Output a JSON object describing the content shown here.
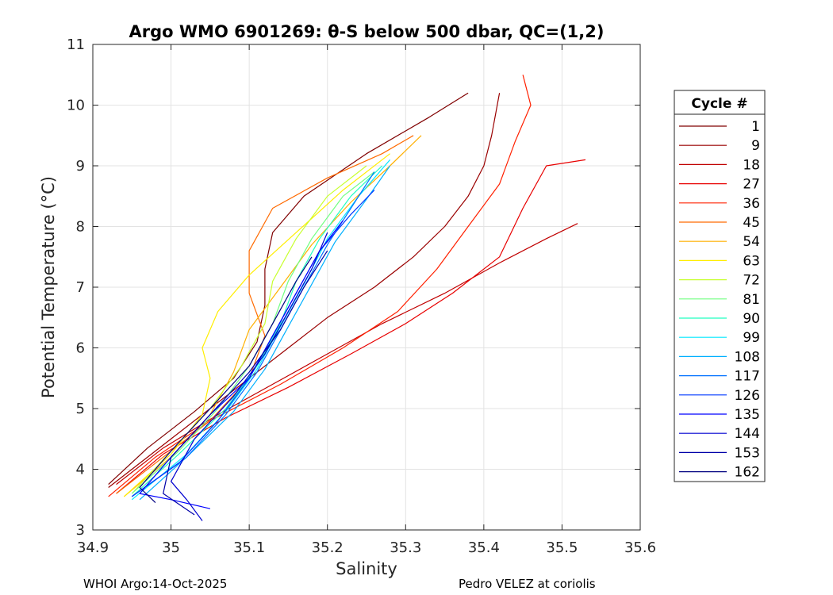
{
  "chart_data": {
    "type": "line",
    "title": "Argo WMO 6901269: θ-S below 500 dbar,  QC=(1,2)",
    "xlabel": "Salinity",
    "ylabel": "Potential Temperature (°C)",
    "xlim": [
      34.9,
      35.6
    ],
    "ylim": [
      3,
      11
    ],
    "xticks": [
      34.9,
      35,
      35.1,
      35.2,
      35.3,
      35.4,
      35.5,
      35.6
    ],
    "xtick_labels": [
      "34.9",
      "35",
      "35.1",
      "35.2",
      "35.3",
      "35.4",
      "35.5",
      "35.6"
    ],
    "yticks": [
      3,
      4,
      5,
      6,
      7,
      8,
      9,
      10,
      11
    ],
    "ytick_labels": [
      "3",
      "4",
      "5",
      "6",
      "7",
      "8",
      "9",
      "10",
      "11"
    ],
    "grid": true,
    "legend": {
      "title": "Cycle #",
      "placement": "outside-right",
      "entries": [
        {
          "label": "1",
          "color": "#800000"
        },
        {
          "label": "9",
          "color": "#9a0000"
        },
        {
          "label": "18",
          "color": "#c00000"
        },
        {
          "label": "27",
          "color": "#e80000"
        },
        {
          "label": "36",
          "color": "#ff2000"
        },
        {
          "label": "45",
          "color": "#ff6a00"
        },
        {
          "label": "54",
          "color": "#ffb000"
        },
        {
          "label": "63",
          "color": "#ffee00"
        },
        {
          "label": "72",
          "color": "#c8ff30"
        },
        {
          "label": "81",
          "color": "#70ff80"
        },
        {
          "label": "90",
          "color": "#20ffc0"
        },
        {
          "label": "99",
          "color": "#00e8ff"
        },
        {
          "label": "108",
          "color": "#00b0ff"
        },
        {
          "label": "117",
          "color": "#0070ff"
        },
        {
          "label": "126",
          "color": "#0038ff"
        },
        {
          "label": "135",
          "color": "#0000ff"
        },
        {
          "label": "144",
          "color": "#0000d0"
        },
        {
          "label": "153",
          "color": "#0000a8"
        },
        {
          "label": "162",
          "color": "#000080"
        }
      ]
    },
    "series": [
      {
        "name": "1",
        "color": "#800000",
        "points": [
          [
            34.92,
            3.75
          ],
          [
            34.97,
            4.35
          ],
          [
            35.03,
            4.95
          ],
          [
            35.08,
            5.5
          ],
          [
            35.11,
            6.1
          ],
          [
            35.12,
            6.7
          ],
          [
            35.12,
            7.3
          ],
          [
            35.13,
            7.9
          ],
          [
            35.17,
            8.5
          ],
          [
            35.25,
            9.2
          ],
          [
            35.33,
            9.8
          ],
          [
            35.38,
            10.2
          ]
        ]
      },
      {
        "name": "9",
        "color": "#9a0000",
        "points": [
          [
            34.92,
            3.7
          ],
          [
            34.98,
            4.3
          ],
          [
            35.04,
            4.9
          ],
          [
            35.1,
            5.5
          ],
          [
            35.15,
            6.0
          ],
          [
            35.2,
            6.5
          ],
          [
            35.26,
            7.0
          ],
          [
            35.31,
            7.5
          ],
          [
            35.35,
            8.0
          ],
          [
            35.38,
            8.5
          ],
          [
            35.4,
            9.0
          ],
          [
            35.41,
            9.5
          ],
          [
            35.42,
            10.2
          ]
        ]
      },
      {
        "name": "18",
        "color": "#c00000",
        "points": [
          [
            34.93,
            3.75
          ],
          [
            34.99,
            4.35
          ],
          [
            35.06,
            4.9
          ],
          [
            35.13,
            5.4
          ],
          [
            35.2,
            5.9
          ],
          [
            35.27,
            6.4
          ],
          [
            35.35,
            6.9
          ],
          [
            35.42,
            7.4
          ],
          [
            35.48,
            7.8
          ],
          [
            35.52,
            8.05
          ]
        ]
      },
      {
        "name": "27",
        "color": "#e80000",
        "points": [
          [
            34.93,
            3.6
          ],
          [
            34.99,
            4.25
          ],
          [
            35.07,
            4.85
          ],
          [
            35.15,
            5.35
          ],
          [
            35.23,
            5.9
          ],
          [
            35.3,
            6.4
          ],
          [
            35.36,
            6.9
          ],
          [
            35.42,
            7.5
          ],
          [
            35.45,
            8.3
          ],
          [
            35.48,
            9.0
          ],
          [
            35.53,
            9.1
          ]
        ]
      },
      {
        "name": "36",
        "color": "#ff2000",
        "points": [
          [
            34.92,
            3.55
          ],
          [
            34.98,
            4.2
          ],
          [
            35.05,
            4.8
          ],
          [
            35.14,
            5.4
          ],
          [
            35.22,
            6.0
          ],
          [
            35.29,
            6.6
          ],
          [
            35.34,
            7.3
          ],
          [
            35.38,
            8.0
          ],
          [
            35.42,
            8.7
          ],
          [
            35.44,
            9.4
          ],
          [
            35.46,
            10.0
          ],
          [
            35.45,
            10.5
          ]
        ]
      },
      {
        "name": "45",
        "color": "#ff6a00",
        "points": [
          [
            34.93,
            3.6
          ],
          [
            34.99,
            4.2
          ],
          [
            35.05,
            4.8
          ],
          [
            35.1,
            5.5
          ],
          [
            35.12,
            6.2
          ],
          [
            35.1,
            6.9
          ],
          [
            35.1,
            7.6
          ],
          [
            35.13,
            8.3
          ],
          [
            35.2,
            8.8
          ],
          [
            35.27,
            9.2
          ],
          [
            35.31,
            9.5
          ]
        ]
      },
      {
        "name": "54",
        "color": "#ffb000",
        "points": [
          [
            34.94,
            3.55
          ],
          [
            35.0,
            4.2
          ],
          [
            35.05,
            4.9
          ],
          [
            35.08,
            5.6
          ],
          [
            35.1,
            6.3
          ],
          [
            35.14,
            7.0
          ],
          [
            35.18,
            7.7
          ],
          [
            35.23,
            8.4
          ],
          [
            35.28,
            9.0
          ],
          [
            35.32,
            9.5
          ]
        ]
      },
      {
        "name": "63",
        "color": "#ffee00",
        "points": [
          [
            34.94,
            3.55
          ],
          [
            35.0,
            4.25
          ],
          [
            35.04,
            4.9
          ],
          [
            35.05,
            5.5
          ],
          [
            35.04,
            6.0
          ],
          [
            35.06,
            6.6
          ],
          [
            35.1,
            7.2
          ],
          [
            35.16,
            7.9
          ],
          [
            35.22,
            8.6
          ],
          [
            35.28,
            9.2
          ]
        ]
      },
      {
        "name": "72",
        "color": "#c8ff30",
        "points": [
          [
            34.95,
            3.6
          ],
          [
            35.0,
            4.3
          ],
          [
            35.05,
            5.0
          ],
          [
            35.09,
            5.7
          ],
          [
            35.12,
            6.4
          ],
          [
            35.13,
            7.1
          ],
          [
            35.16,
            7.8
          ],
          [
            35.2,
            8.5
          ],
          [
            35.25,
            9.0
          ]
        ]
      },
      {
        "name": "81",
        "color": "#70ff80",
        "points": [
          [
            34.95,
            3.6
          ],
          [
            35.01,
            4.3
          ],
          [
            35.06,
            5.0
          ],
          [
            35.1,
            5.7
          ],
          [
            35.13,
            6.4
          ],
          [
            35.15,
            7.1
          ],
          [
            35.18,
            7.8
          ],
          [
            35.22,
            8.5
          ],
          [
            35.26,
            8.9
          ]
        ]
      },
      {
        "name": "90",
        "color": "#20ffc0",
        "points": [
          [
            34.95,
            3.55
          ],
          [
            35.01,
            4.25
          ],
          [
            35.07,
            5.0
          ],
          [
            35.11,
            5.7
          ],
          [
            35.14,
            6.4
          ],
          [
            35.16,
            7.1
          ],
          [
            35.19,
            7.8
          ],
          [
            35.23,
            8.5
          ],
          [
            35.27,
            9.0
          ]
        ]
      },
      {
        "name": "99",
        "color": "#00e8ff",
        "points": [
          [
            34.95,
            3.5
          ],
          [
            35.02,
            4.25
          ],
          [
            35.07,
            4.95
          ],
          [
            35.11,
            5.65
          ],
          [
            35.14,
            6.35
          ],
          [
            35.17,
            7.05
          ],
          [
            35.2,
            7.8
          ],
          [
            35.24,
            8.5
          ],
          [
            35.28,
            9.1
          ]
        ]
      },
      {
        "name": "108",
        "color": "#00b0ff",
        "points": [
          [
            34.96,
            3.5
          ],
          [
            35.02,
            4.2
          ],
          [
            35.08,
            4.95
          ],
          [
            35.12,
            5.65
          ],
          [
            35.15,
            6.35
          ],
          [
            35.18,
            7.05
          ],
          [
            35.21,
            7.75
          ],
          [
            35.25,
            8.45
          ],
          [
            35.28,
            9.0
          ]
        ]
      },
      {
        "name": "117",
        "color": "#0070ff",
        "points": [
          [
            34.95,
            3.55
          ],
          [
            35.02,
            4.2
          ],
          [
            35.07,
            4.9
          ],
          [
            35.11,
            5.6
          ],
          [
            35.14,
            6.3
          ],
          [
            35.17,
            7.0
          ],
          [
            35.2,
            7.7
          ],
          [
            35.23,
            8.3
          ],
          [
            35.26,
            8.9
          ]
        ]
      },
      {
        "name": "126",
        "color": "#0038ff",
        "points": [
          [
            34.95,
            3.55
          ],
          [
            35.01,
            4.1
          ],
          [
            35.06,
            4.8
          ],
          [
            35.1,
            5.5
          ],
          [
            35.13,
            6.2
          ],
          [
            35.16,
            6.9
          ],
          [
            35.19,
            7.6
          ],
          [
            35.23,
            8.2
          ],
          [
            35.26,
            8.6
          ]
        ]
      },
      {
        "name": "135",
        "color": "#0000ff",
        "points": [
          [
            35.05,
            3.35
          ],
          [
            35.0,
            3.5
          ],
          [
            34.96,
            3.6
          ],
          [
            35.0,
            4.2
          ],
          [
            35.05,
            4.9
          ],
          [
            35.1,
            5.5
          ],
          [
            35.13,
            6.2
          ],
          [
            35.16,
            6.9
          ],
          [
            35.19,
            7.6
          ],
          [
            35.22,
            8.1
          ]
        ]
      },
      {
        "name": "144",
        "color": "#0000d0",
        "points": [
          [
            35.04,
            3.15
          ],
          [
            35.02,
            3.5
          ],
          [
            35.0,
            3.8
          ],
          [
            35.03,
            4.5
          ],
          [
            35.08,
            5.2
          ],
          [
            35.12,
            5.9
          ],
          [
            35.15,
            6.6
          ],
          [
            35.18,
            7.3
          ],
          [
            35.2,
            7.9
          ]
        ]
      },
      {
        "name": "153",
        "color": "#0000a8",
        "points": [
          [
            35.03,
            3.25
          ],
          [
            34.99,
            3.6
          ],
          [
            35.0,
            4.2
          ],
          [
            35.05,
            4.9
          ],
          [
            35.1,
            5.6
          ],
          [
            35.14,
            6.3
          ],
          [
            35.17,
            7.0
          ],
          [
            35.2,
            7.6
          ]
        ]
      },
      {
        "name": "162",
        "color": "#000080",
        "points": [
          [
            34.98,
            3.45
          ],
          [
            34.96,
            3.7
          ],
          [
            35.0,
            4.3
          ],
          [
            35.05,
            5.0
          ],
          [
            35.1,
            5.7
          ],
          [
            35.13,
            6.4
          ],
          [
            35.16,
            7.1
          ],
          [
            35.18,
            7.5
          ]
        ]
      }
    ]
  },
  "footer": {
    "left": "WHOI Argo:14-Oct-2025",
    "right": "Pedro VELEZ at coriolis"
  }
}
